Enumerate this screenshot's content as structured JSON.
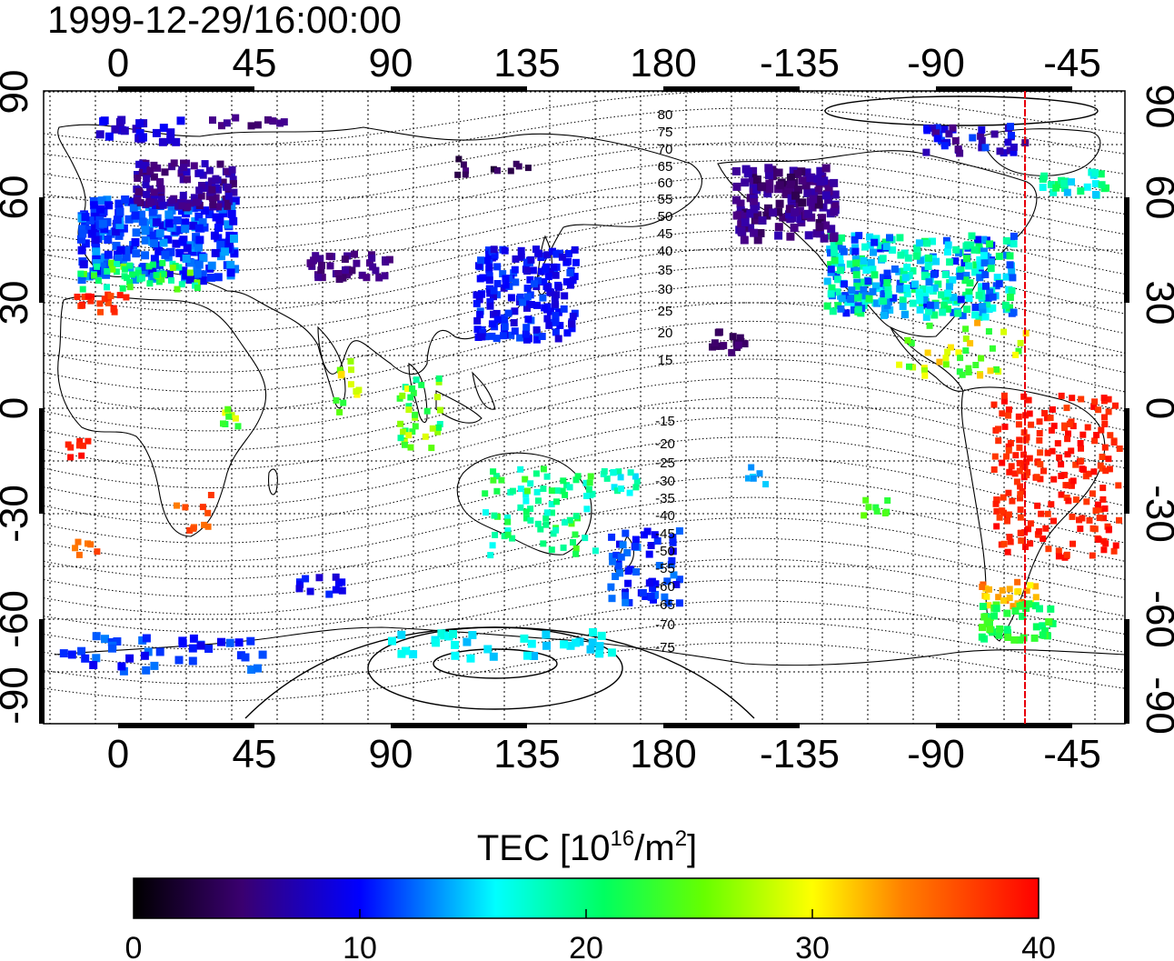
{
  "title": "1999-12-29/16:00:00",
  "map": {
    "lon_ticks": [
      "0",
      "45",
      "90",
      "135",
      "180",
      "-135",
      "-90",
      "-45"
    ],
    "lat_ticks": [
      "90",
      "60",
      "30",
      "0",
      "-30",
      "-60",
      "-90"
    ],
    "mag_lat_labels_north": [
      "80",
      "75",
      "70",
      "65",
      "60",
      "55",
      "50",
      "45",
      "40",
      "35",
      "30",
      "25",
      "20",
      "15"
    ],
    "mag_lat_labels_south": [
      "-15",
      "-20",
      "-25",
      "-30",
      "-35",
      "-40",
      "-45",
      "-50",
      "-55",
      "-60",
      "-65",
      "-70",
      "-75"
    ],
    "meridian_marker_color": "#e8000b",
    "grid": true
  },
  "colorbar": {
    "title_prefix": "TEC  [10",
    "title_exp": "16",
    "title_mid": "/m",
    "title_exp2": "2",
    "title_suffix": "]",
    "ticks": [
      "0",
      "10",
      "20",
      "30",
      "40"
    ],
    "stops": [
      "#000000",
      "#4b0082",
      "#0000ff",
      "#00ffff",
      "#00ff00",
      "#ffff00",
      "#ff8000",
      "#ff0000"
    ]
  }
}
